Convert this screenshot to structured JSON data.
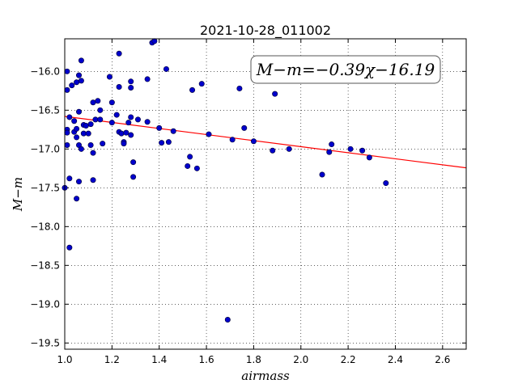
{
  "chart_data": {
    "type": "scatter",
    "title": "2021-10-28_011002",
    "xlabel": "airmass",
    "ylabel": "M−m",
    "xlim": [
      1.0,
      2.7
    ],
    "ylim": [
      -19.58,
      -15.58
    ],
    "y_inverted": true,
    "x_ticks": [
      "1.0",
      "1.2",
      "1.4",
      "1.6",
      "1.8",
      "2.0",
      "2.2",
      "2.4",
      "2.6"
    ],
    "x_tick_values": [
      1.0,
      1.2,
      1.4,
      1.6,
      1.8,
      2.0,
      2.2,
      2.4,
      2.6
    ],
    "y_ticks": [
      "−16.0",
      "−16.5",
      "−17.0",
      "−17.5",
      "−18.0",
      "−18.5",
      "−19.0",
      "−19.5"
    ],
    "y_tick_values": [
      -16.0,
      -16.5,
      -17.0,
      -17.5,
      -18.0,
      -18.5,
      -19.0,
      -19.5
    ],
    "grid": true,
    "annotation": "M−m=−0.39χ−16.19",
    "fit_line": {
      "slope": -0.39,
      "intercept": -16.19,
      "color": "#ff0000"
    },
    "point_color": "#0000cc",
    "points": [
      [
        1.0,
        -17.5
      ],
      [
        1.01,
        -16.0
      ],
      [
        1.01,
        -16.24
      ],
      [
        1.01,
        -16.75
      ],
      [
        1.01,
        -16.79
      ],
      [
        1.01,
        -16.95
      ],
      [
        1.02,
        -16.59
      ],
      [
        1.02,
        -17.38
      ],
      [
        1.02,
        -18.27
      ],
      [
        1.03,
        -16.18
      ],
      [
        1.04,
        -16.64
      ],
      [
        1.04,
        -16.78
      ],
      [
        1.05,
        -16.14
      ],
      [
        1.05,
        -16.74
      ],
      [
        1.05,
        -16.85
      ],
      [
        1.05,
        -17.64
      ],
      [
        1.06,
        -16.05
      ],
      [
        1.06,
        -16.52
      ],
      [
        1.06,
        -16.95
      ],
      [
        1.06,
        -17.42
      ],
      [
        1.07,
        -16.12
      ],
      [
        1.07,
        -17.0
      ],
      [
        1.07,
        -15.86
      ],
      [
        1.08,
        -16.69
      ],
      [
        1.08,
        -16.8
      ],
      [
        1.09,
        -16.7
      ],
      [
        1.1,
        -16.8
      ],
      [
        1.11,
        -16.95
      ],
      [
        1.11,
        -16.68
      ],
      [
        1.12,
        -16.4
      ],
      [
        1.12,
        -17.05
      ],
      [
        1.12,
        -17.4
      ],
      [
        1.13,
        -16.62
      ],
      [
        1.14,
        -16.38
      ],
      [
        1.15,
        -16.5
      ],
      [
        1.15,
        -16.62
      ],
      [
        1.16,
        -16.93
      ],
      [
        1.19,
        -16.07
      ],
      [
        1.2,
        -16.4
      ],
      [
        1.2,
        -16.66
      ],
      [
        1.22,
        -16.56
      ],
      [
        1.23,
        -16.2
      ],
      [
        1.23,
        -16.78
      ],
      [
        1.23,
        -15.77
      ],
      [
        1.24,
        -16.8
      ],
      [
        1.25,
        -16.91
      ],
      [
        1.25,
        -16.93
      ],
      [
        1.26,
        -16.79
      ],
      [
        1.27,
        -16.66
      ],
      [
        1.28,
        -16.21
      ],
      [
        1.28,
        -16.13
      ],
      [
        1.28,
        -16.59
      ],
      [
        1.28,
        -16.82
      ],
      [
        1.29,
        -17.17
      ],
      [
        1.29,
        -17.36
      ],
      [
        1.31,
        -16.62
      ],
      [
        1.35,
        -16.1
      ],
      [
        1.35,
        -16.65
      ],
      [
        1.37,
        -15.63
      ],
      [
        1.38,
        -15.61
      ],
      [
        1.4,
        -16.73
      ],
      [
        1.41,
        -16.92
      ],
      [
        1.43,
        -15.97
      ],
      [
        1.44,
        -16.91
      ],
      [
        1.46,
        -16.77
      ],
      [
        1.52,
        -17.22
      ],
      [
        1.53,
        -17.1
      ],
      [
        1.54,
        -16.24
      ],
      [
        1.56,
        -17.25
      ],
      [
        1.58,
        -16.16
      ],
      [
        1.61,
        -16.81
      ],
      [
        1.69,
        -19.2
      ],
      [
        1.71,
        -16.88
      ],
      [
        1.74,
        -16.22
      ],
      [
        1.76,
        -16.73
      ],
      [
        1.8,
        -16.9
      ],
      [
        1.88,
        -17.02
      ],
      [
        1.89,
        -16.29
      ],
      [
        1.95,
        -17.0
      ],
      [
        2.09,
        -17.33
      ],
      [
        2.12,
        -17.04
      ],
      [
        2.13,
        -16.94
      ],
      [
        2.21,
        -17.0
      ],
      [
        2.26,
        -17.02
      ],
      [
        2.29,
        -17.11
      ],
      [
        2.36,
        -17.44
      ]
    ]
  }
}
